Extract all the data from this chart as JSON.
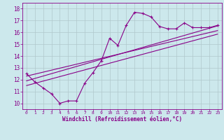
{
  "xlabel": "Windchill (Refroidissement éolien,°C)",
  "background_color": "#cce8ec",
  "grid_color": "#b0c8cc",
  "line_color": "#880088",
  "xlim": [
    -0.5,
    23.5
  ],
  "ylim": [
    9.5,
    18.5
  ],
  "xticks": [
    0,
    1,
    2,
    3,
    4,
    5,
    6,
    7,
    8,
    9,
    10,
    11,
    12,
    13,
    14,
    15,
    16,
    17,
    18,
    19,
    20,
    21,
    22,
    23
  ],
  "yticks": [
    10,
    11,
    12,
    13,
    14,
    15,
    16,
    17,
    18
  ],
  "main_x": [
    0,
    1,
    2,
    3,
    4,
    5,
    6,
    7,
    8,
    9,
    10,
    11,
    12,
    13,
    14,
    15,
    16,
    17,
    18,
    19,
    20,
    21,
    22,
    23
  ],
  "main_y": [
    12.5,
    11.8,
    11.3,
    10.8,
    10.0,
    10.2,
    10.2,
    11.7,
    12.6,
    13.6,
    15.5,
    14.9,
    16.6,
    17.7,
    17.6,
    17.3,
    16.5,
    16.3,
    16.3,
    16.8,
    16.4,
    16.4,
    16.4,
    16.6
  ],
  "trend1_x": [
    0,
    23
  ],
  "trend1_y": [
    11.9,
    16.55
  ],
  "trend2_x": [
    0,
    23
  ],
  "trend2_y": [
    12.3,
    16.15
  ],
  "trend3_x": [
    0,
    23
  ],
  "trend3_y": [
    11.5,
    15.85
  ]
}
